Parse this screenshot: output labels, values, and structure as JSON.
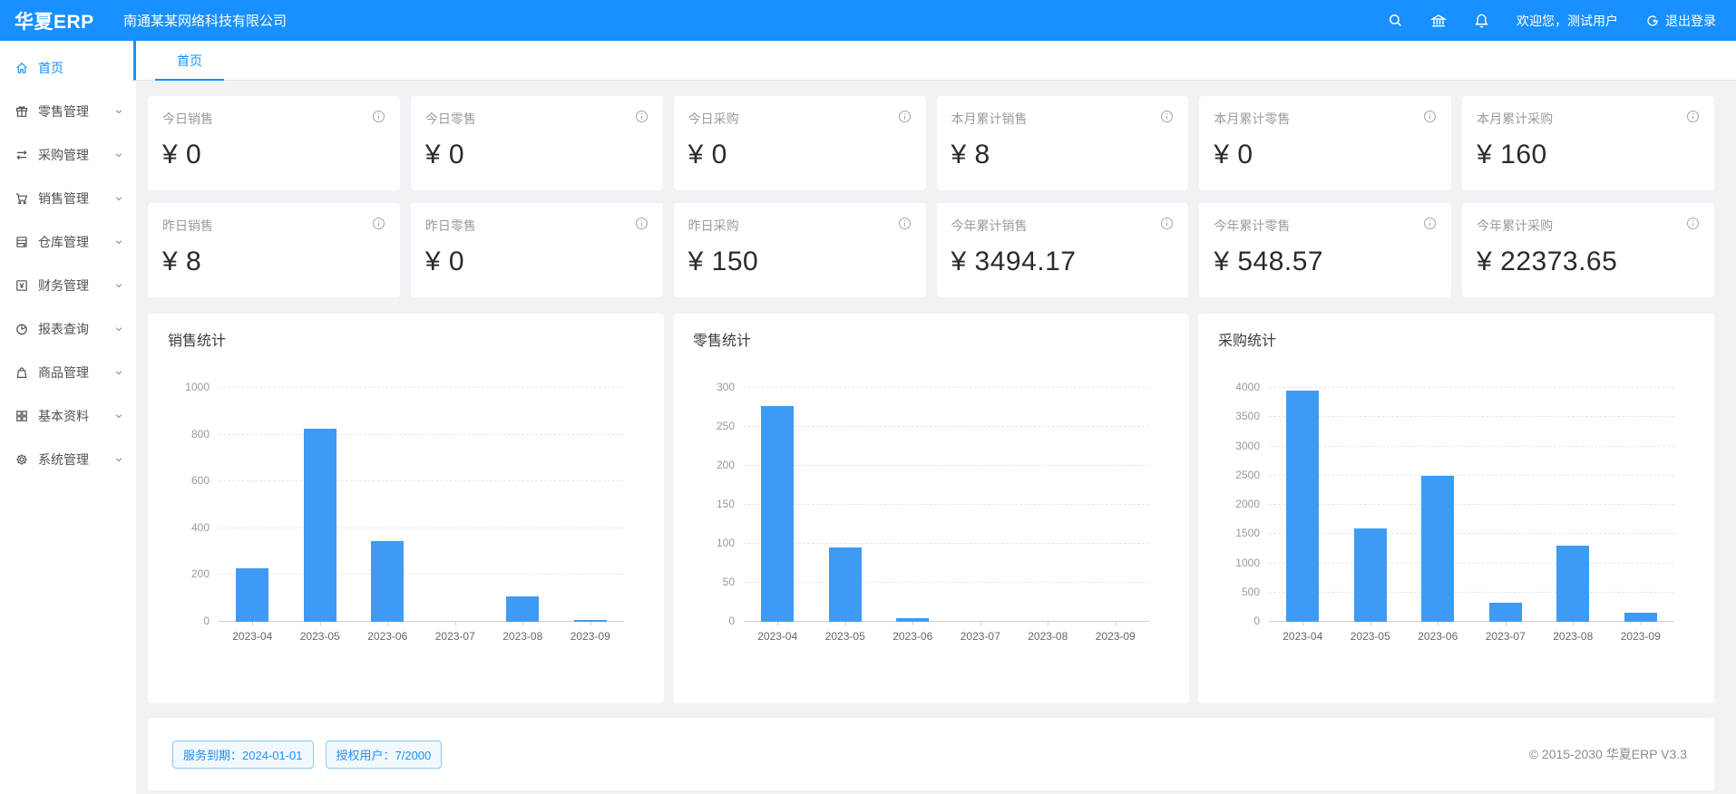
{
  "colors": {
    "accent": "#1890ff",
    "background": "#f0f2f5",
    "bar": "#3E9BF3"
  },
  "header": {
    "logo": "华夏ERP",
    "company": "南通某某网络科技有限公司",
    "icons": [
      "search-icon",
      "bank-icon",
      "bell-icon"
    ],
    "welcome": "欢迎您，测试用户",
    "logout_label": "退出登录"
  },
  "tabbar": {
    "active_tab": "首页"
  },
  "sidebar": {
    "items": [
      {
        "label": "首页",
        "icon": "home-icon",
        "active": true,
        "expandable": false
      },
      {
        "label": "零售管理",
        "icon": "gift-icon",
        "active": false,
        "expandable": true
      },
      {
        "label": "采购管理",
        "icon": "swap-icon",
        "active": false,
        "expandable": true
      },
      {
        "label": "销售管理",
        "icon": "cart-icon",
        "active": false,
        "expandable": true
      },
      {
        "label": "仓库管理",
        "icon": "storage-icon",
        "active": false,
        "expandable": true
      },
      {
        "label": "财务管理",
        "icon": "finance-icon",
        "active": false,
        "expandable": true
      },
      {
        "label": "报表查询",
        "icon": "pie-chart-icon",
        "active": false,
        "expandable": true
      },
      {
        "label": "商品管理",
        "icon": "bag-icon",
        "active": false,
        "expandable": true
      },
      {
        "label": "基本资料",
        "icon": "grid-icon",
        "active": false,
        "expandable": true
      },
      {
        "label": "系统管理",
        "icon": "gear-icon",
        "active": false,
        "expandable": true
      }
    ]
  },
  "stats": {
    "cards": [
      {
        "title": "今日销售",
        "value": "¥ 0"
      },
      {
        "title": "今日零售",
        "value": "¥ 0"
      },
      {
        "title": "今日采购",
        "value": "¥ 0"
      },
      {
        "title": "本月累计销售",
        "value": "¥ 8"
      },
      {
        "title": "本月累计零售",
        "value": "¥ 0"
      },
      {
        "title": "本月累计采购",
        "value": "¥ 160"
      },
      {
        "title": "昨日销售",
        "value": "¥ 8"
      },
      {
        "title": "昨日零售",
        "value": "¥ 0"
      },
      {
        "title": "昨日采购",
        "value": "¥ 150"
      },
      {
        "title": "今年累计销售",
        "value": "¥ 3494.17"
      },
      {
        "title": "今年累计零售",
        "value": "¥ 548.57"
      },
      {
        "title": "今年累计采购",
        "value": "¥ 22373.65"
      }
    ]
  },
  "chart_data": [
    {
      "type": "bar",
      "title": "销售统计",
      "categories": [
        "2023-04",
        "2023-05",
        "2023-06",
        "2023-07",
        "2023-08",
        "2023-09"
      ],
      "values": [
        230,
        825,
        345,
        0,
        110,
        8
      ],
      "xlabel": "",
      "ylabel": "",
      "ylim": [
        0,
        1000
      ],
      "ytick_step": 200,
      "grid": true,
      "legend": "none",
      "bar_color": "#3E9BF3"
    },
    {
      "type": "bar",
      "title": "零售统计",
      "categories": [
        "2023-04",
        "2023-05",
        "2023-06",
        "2023-07",
        "2023-08",
        "2023-09"
      ],
      "values": [
        277,
        95,
        5,
        0,
        0,
        0
      ],
      "xlabel": "",
      "ylabel": "",
      "ylim": [
        0,
        300
      ],
      "ytick_step": 50,
      "grid": true,
      "legend": "none",
      "bar_color": "#3E9BF3"
    },
    {
      "type": "bar",
      "title": "采购统计",
      "categories": [
        "2023-04",
        "2023-05",
        "2023-06",
        "2023-07",
        "2023-08",
        "2023-09"
      ],
      "values": [
        3950,
        1590,
        2500,
        330,
        1300,
        160
      ],
      "xlabel": "",
      "ylabel": "",
      "ylim": [
        0,
        4000
      ],
      "ytick_step": 500,
      "grid": true,
      "legend": "none",
      "bar_color": "#3E9BF3"
    }
  ],
  "footer": {
    "badges": [
      "服务到期：2024-01-01",
      "授权用户：7/2000"
    ],
    "copyright": "© 2015-2030 华夏ERP V3.3"
  }
}
